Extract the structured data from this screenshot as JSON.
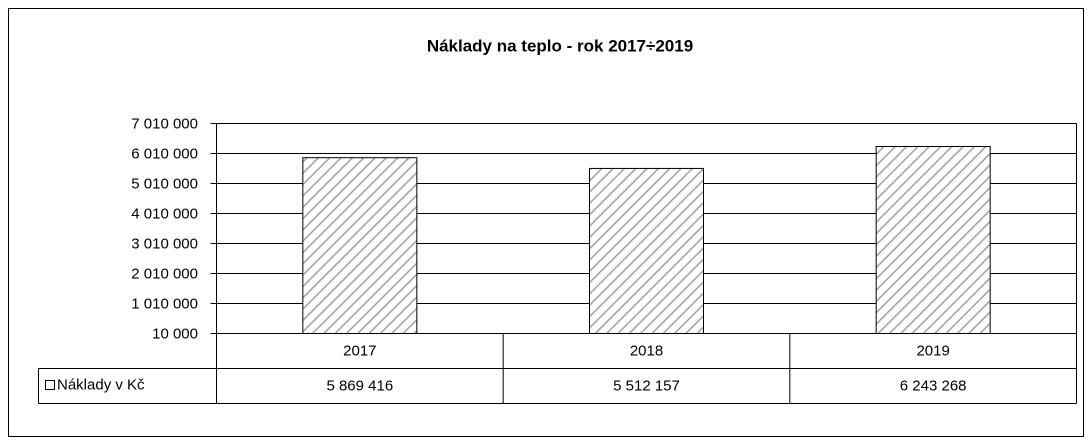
{
  "chart_data": {
    "type": "bar",
    "title": "Náklady na teplo - rok 2017÷2019",
    "categories": [
      "2017",
      "2018",
      "2019"
    ],
    "series": [
      {
        "name": "Náklady v Kč",
        "color": "#a0a0a0",
        "values": [
          5869416,
          5512157,
          6243268
        ],
        "value_labels": [
          "5 869 416",
          "5 512 157",
          "6 243 268"
        ]
      }
    ],
    "ylim": [
      10000,
      7010000
    ],
    "yticks": [
      {
        "value": 10000,
        "label": "10 000"
      },
      {
        "value": 1010000,
        "label": "1 010 000"
      },
      {
        "value": 2010000,
        "label": "2 010 000"
      },
      {
        "value": 3010000,
        "label": "3 010 000"
      },
      {
        "value": 4010000,
        "label": "4 010 000"
      },
      {
        "value": 5010000,
        "label": "5 010 000"
      },
      {
        "value": 6010000,
        "label": "6 010 000"
      },
      {
        "value": 7010000,
        "label": "7 010 000"
      }
    ],
    "grid": true
  }
}
